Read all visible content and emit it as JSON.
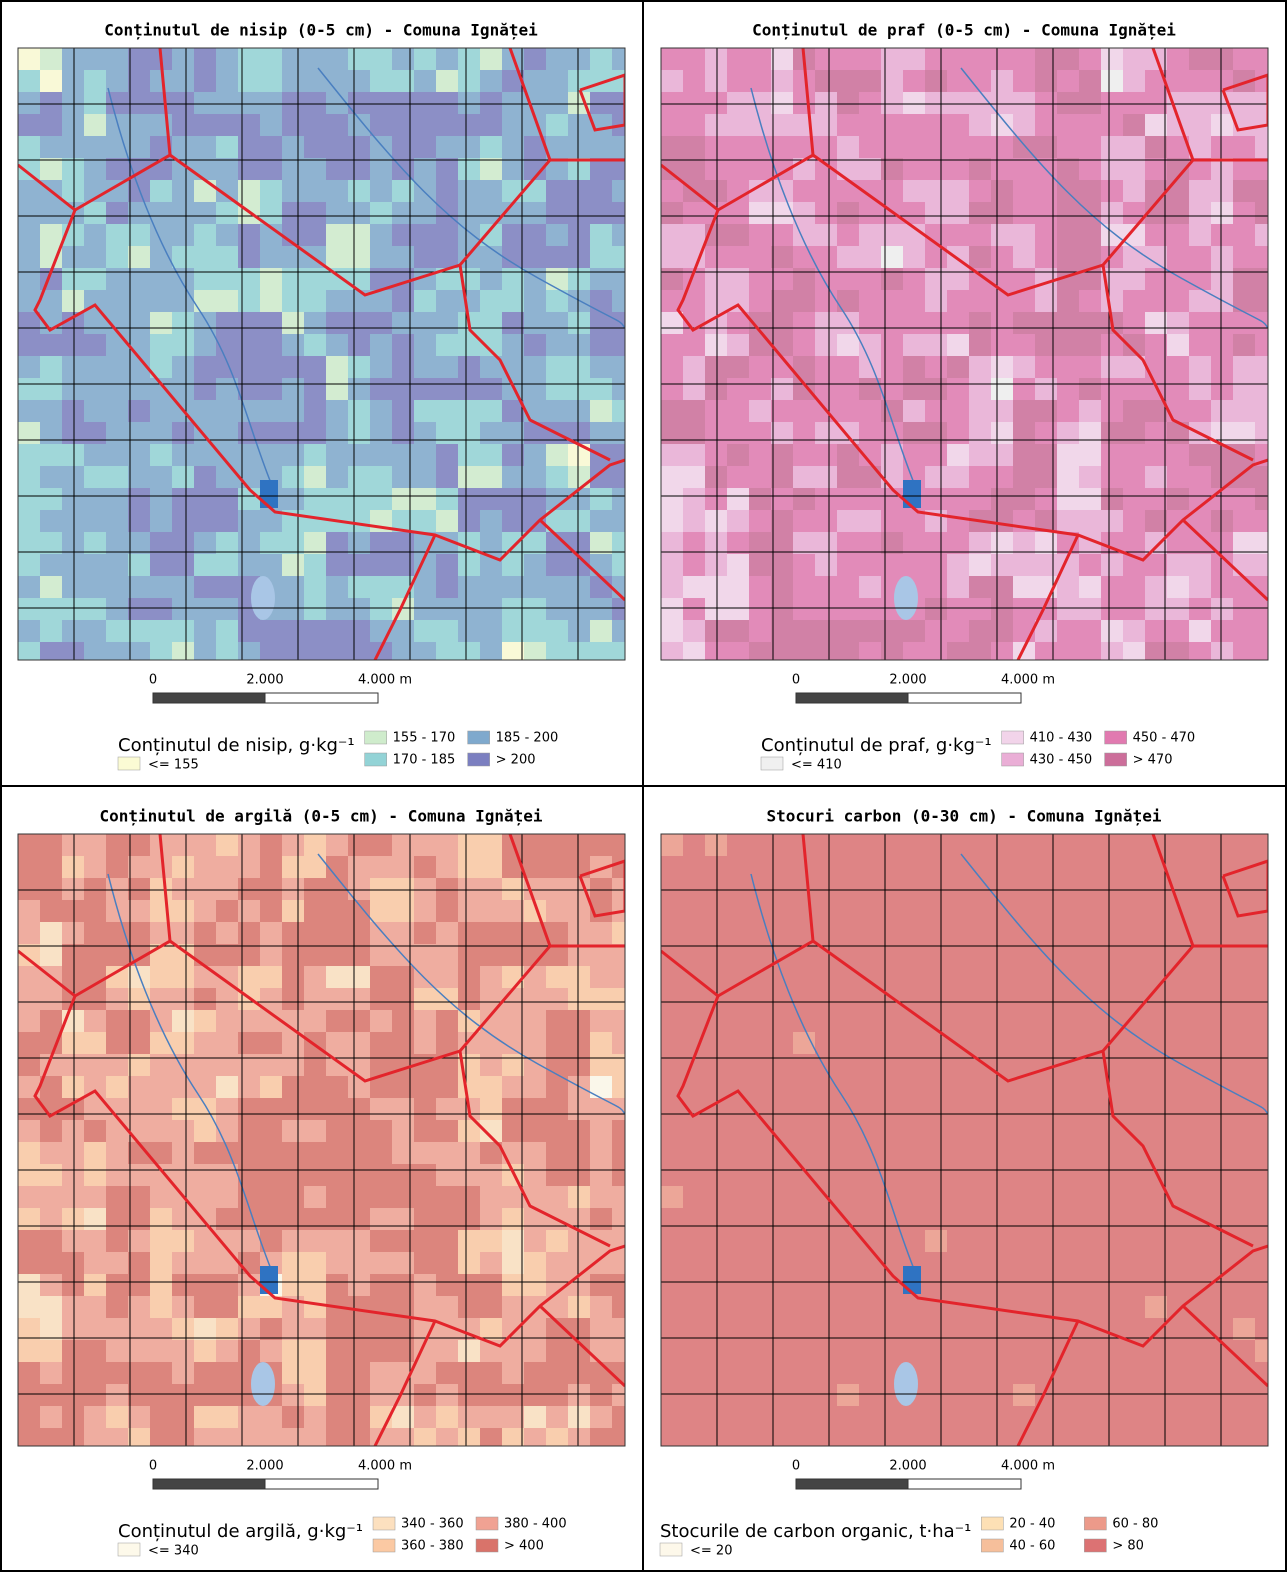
{
  "panels": [
    {
      "title": "Conținutul de nisip (0-5 cm) - Comuna Ignăței",
      "scale_labels": [
        "0",
        "2.000",
        "4.000 m"
      ],
      "legend": {
        "title": "Conținutul de nisip, g·kg⁻¹",
        "items": [
          {
            "label": "<= 155",
            "color": "#fbfbd4"
          },
          {
            "label": "155 - 170",
            "color": "#cfeccc"
          },
          {
            "label": "170 - 185",
            "color": "#93d3d6"
          },
          {
            "label": "185 - 200",
            "color": "#7fa9cd"
          },
          {
            "label": "> 200",
            "color": "#7b7fc0"
          }
        ]
      }
    },
    {
      "title": "Conținutul de praf (0-5 cm) - Comuna Ignăței",
      "scale_labels": [
        "0",
        "2.000",
        "4.000 m"
      ],
      "legend": {
        "title": "Conținutul de praf, g·kg⁻¹",
        "items": [
          {
            "label": "<= 410",
            "color": "#f0f0f0"
          },
          {
            "label": "410 - 430",
            "color": "#f2d4ea"
          },
          {
            "label": "430 - 450",
            "color": "#eaaed6"
          },
          {
            "label": "450 - 470",
            "color": "#e17ab0"
          },
          {
            "label": "> 470",
            "color": "#cc6e9a"
          }
        ]
      }
    },
    {
      "title": "Conținutul de argilă (0-5 cm) - Comuna Ignăței",
      "scale_labels": [
        "0",
        "2.000",
        "4.000 m"
      ],
      "legend": {
        "title": "Conținutul de argilă, g·kg⁻¹",
        "items": [
          {
            "label": "<= 340",
            "color": "#fdf9ea"
          },
          {
            "label": "340 - 360",
            "color": "#fce0bf"
          },
          {
            "label": "360 - 380",
            "color": "#fbc9a3"
          },
          {
            "label": "380 - 400",
            "color": "#f0a293"
          },
          {
            "label": "> 400",
            "color": "#d9736a"
          }
        ]
      }
    },
    {
      "title": "Stocuri carbon (0-30 cm) - Comuna Ignăței",
      "scale_labels": [
        "0",
        "2.000",
        "4.000 m"
      ],
      "legend": {
        "title": "Stocurile de carbon organic, t·ha⁻¹",
        "items": [
          {
            "label": "<= 20",
            "color": "#fdf8ea"
          },
          {
            "label": "20 - 40",
            "color": "#fde0b5"
          },
          {
            "label": "40 - 60",
            "color": "#f6bf9b"
          },
          {
            "label": "60 - 80",
            "color": "#ec9a8a"
          },
          {
            "label": "> 80",
            "color": "#dc7273"
          }
        ]
      }
    }
  ]
}
